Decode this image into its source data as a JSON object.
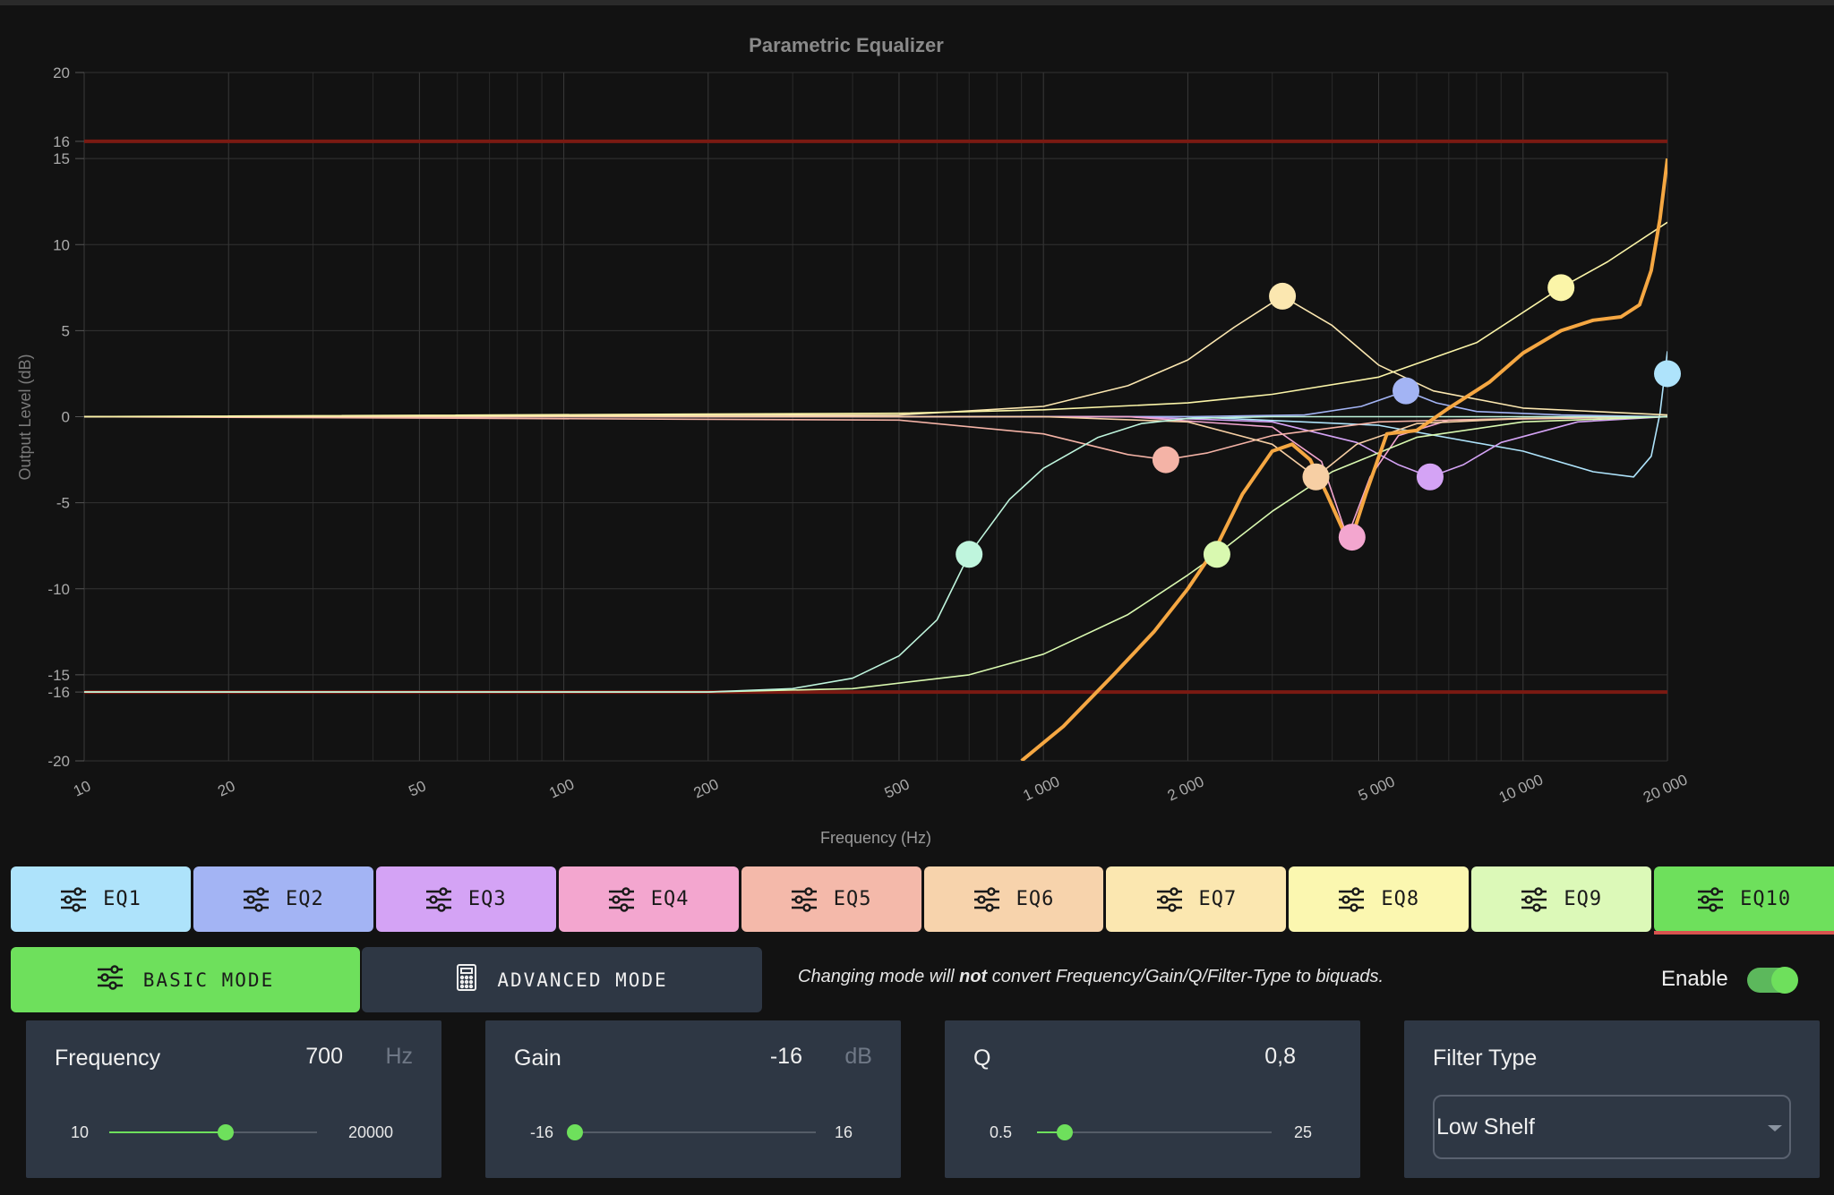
{
  "chart_data": {
    "type": "line",
    "title": "Parametric Equalizer",
    "xlabel": "Frequency (Hz)",
    "ylabel": "Output Level (dB)",
    "x_scale": "log",
    "xlim": [
      10,
      20000
    ],
    "ylim": [
      -20,
      20
    ],
    "grid": true,
    "y_ticks": [
      20,
      16,
      15,
      10,
      5,
      0,
      -5,
      -10,
      -15,
      -16,
      -20
    ],
    "y_tick_labels": [
      "20",
      "16",
      "15",
      "10",
      "5",
      "0",
      "-5",
      "-10",
      "-15",
      "-16",
      "-20"
    ],
    "x_ticks": [
      10,
      20,
      50,
      100,
      200,
      500,
      1000,
      2000,
      5000,
      10000,
      20000
    ],
    "x_tick_labels": [
      "10",
      "20",
      "50",
      "100",
      "200",
      "500",
      "1 000",
      "2 000",
      "5 000",
      "10 000",
      "20 000"
    ],
    "limit_lines": [
      16,
      -16
    ],
    "series": [
      {
        "color": "#aee3fb",
        "x": [
          10,
          2000,
          5000,
          10000,
          14000,
          17000,
          18500,
          19300,
          20000
        ],
        "y": [
          0,
          0,
          -0.5,
          -2,
          -3.2,
          -3.5,
          -2.3,
          0.2,
          3.8
        ]
      },
      {
        "color": "#a3b4f4",
        "x": [
          10,
          2000,
          3500,
          4600,
          5700,
          6600,
          8000,
          12000,
          20000
        ],
        "y": [
          0,
          0,
          0.1,
          0.6,
          1.5,
          0.8,
          0.3,
          0.1,
          0
        ]
      },
      {
        "color": "#d4a3f5",
        "x": [
          10,
          1500,
          3000,
          4500,
          5500,
          6400,
          7500,
          9000,
          13000,
          20000
        ],
        "y": [
          0,
          0,
          -0.3,
          -1.5,
          -2.8,
          -3.5,
          -2.8,
          -1.5,
          -0.3,
          0
        ]
      },
      {
        "color": "#f3a6cf",
        "x": [
          10,
          1500,
          3000,
          3800,
          4300,
          4800,
          5500,
          7000,
          20000
        ],
        "y": [
          0,
          0,
          -0.6,
          -2.6,
          -7,
          -3.5,
          -1.1,
          -0.2,
          0
        ]
      },
      {
        "color": "#f4b3a6",
        "x": [
          10,
          500,
          1000,
          1500,
          1800,
          2200,
          3000,
          5000,
          10000,
          20000
        ],
        "y": [
          0,
          -0.2,
          -1,
          -2.2,
          -2.5,
          -2.1,
          -1.1,
          -0.3,
          -0.1,
          0
        ]
      },
      {
        "color": "#f7cfa4",
        "x": [
          10,
          1000,
          2000,
          3000,
          3700,
          4500,
          6000,
          10000,
          20000
        ],
        "y": [
          0,
          0,
          -0.3,
          -1.6,
          -3.5,
          -1.6,
          -0.4,
          -0.1,
          0
        ]
      },
      {
        "color": "#fbe7b0",
        "x": [
          10,
          500,
          1000,
          1500,
          2000,
          2500,
          3150,
          4000,
          5000,
          6500,
          10000,
          20000
        ],
        "y": [
          0,
          0.1,
          0.6,
          1.8,
          3.3,
          5.2,
          7,
          5.3,
          3,
          1.5,
          0.5,
          0.1
        ]
      },
      {
        "color": "#fbf5a8",
        "x": [
          10,
          500,
          1000,
          2000,
          3000,
          5000,
          8000,
          12000,
          15000,
          20000
        ],
        "y": [
          0,
          0.2,
          0.4,
          0.8,
          1.3,
          2.3,
          4.3,
          7.5,
          9,
          11.3
        ]
      },
      {
        "color": "#d9f9b0",
        "x": [
          10,
          200,
          400,
          700,
          1000,
          1500,
          2000,
          2300,
          3000,
          4000,
          6000,
          10000,
          20000
        ],
        "y": [
          -16,
          -16,
          -15.8,
          -15,
          -13.8,
          -11.5,
          -9.2,
          -8,
          -5.5,
          -3.2,
          -1.2,
          -0.3,
          0
        ]
      },
      {
        "color": "#bff5dd",
        "x": [
          10,
          200,
          300,
          400,
          500,
          600,
          700,
          850,
          1000,
          1300,
          1600,
          2000,
          3000,
          5000,
          20000
        ],
        "y": [
          -16,
          -16,
          -15.8,
          -15.2,
          -13.9,
          -11.8,
          -8,
          -4.8,
          -3,
          -1.2,
          -0.4,
          -0.1,
          0,
          0,
          0
        ]
      }
    ],
    "combined": {
      "color": "#f5a742",
      "x": [
        900,
        1100,
        1400,
        1700,
        2000,
        2300,
        2600,
        3000,
        3300,
        3600,
        3900,
        4200,
        4400,
        4700,
        5200,
        6000,
        7000,
        8500,
        10000,
        12000,
        14000,
        16000,
        17500,
        18500,
        19300,
        20000
      ],
      "y": [
        -20,
        -18,
        -15,
        -12.5,
        -10,
        -7.5,
        -4.5,
        -2,
        -1.6,
        -2.5,
        -4.5,
        -6.5,
        -7,
        -4.5,
        -1,
        -0.8,
        0.5,
        2,
        3.7,
        5,
        5.6,
        5.8,
        6.5,
        8.5,
        11.5,
        15
      ]
    },
    "markers": [
      {
        "x": 20000,
        "y": 2.5,
        "color": "#aee3fb"
      },
      {
        "x": 5700,
        "y": 1.5,
        "color": "#a3b4f4"
      },
      {
        "x": 6400,
        "y": -3.5,
        "color": "#d4a3f5"
      },
      {
        "x": 4400,
        "y": -7,
        "color": "#f3a6cf"
      },
      {
        "x": 1800,
        "y": -2.5,
        "color": "#f4b3a6"
      },
      {
        "x": 3700,
        "y": -3.5,
        "color": "#f7cfa4"
      },
      {
        "x": 3150,
        "y": 7,
        "color": "#fbe7b0"
      },
      {
        "x": 12000,
        "y": 7.5,
        "color": "#fbf5a8"
      },
      {
        "x": 2300,
        "y": -8,
        "color": "#d9f9b0"
      },
      {
        "x": 700,
        "y": -8,
        "color": "#bff5dd"
      }
    ]
  },
  "tabs": [
    {
      "label": "EQ1",
      "color": "#aee3fb"
    },
    {
      "label": "EQ2",
      "color": "#a3b4f4"
    },
    {
      "label": "EQ3",
      "color": "#d4a3f5"
    },
    {
      "label": "EQ4",
      "color": "#f3a6cf"
    },
    {
      "label": "EQ5",
      "color": "#f4b9aa"
    },
    {
      "label": "EQ6",
      "color": "#f7d3ac"
    },
    {
      "label": "EQ7",
      "color": "#fbe7b0"
    },
    {
      "label": "EQ8",
      "color": "#fbf7b0"
    },
    {
      "label": "EQ9",
      "color": "#dcf9b8"
    },
    {
      "label": "EQ10",
      "color": "#6ee05c",
      "active": true
    }
  ],
  "mode": {
    "basic_label": "BASIC MODE",
    "advanced_label": "ADVANCED MODE",
    "note_prefix": "Changing mode will ",
    "note_bold": "not",
    "note_suffix": " convert Frequency/Gain/Q/Filter-Type to biquads."
  },
  "enable": {
    "label": "Enable",
    "on": true
  },
  "controls": {
    "frequency": {
      "label": "Frequency",
      "value": "700",
      "unit": "Hz",
      "min": "10",
      "max": "20000",
      "fraction": 0.56
    },
    "gain": {
      "label": "Gain",
      "value": "-16",
      "unit": "dB",
      "min": "-16",
      "max": "16",
      "fraction": 0.0
    },
    "q": {
      "label": "Q",
      "value": "0,8",
      "min": "0.5",
      "max": "25",
      "fraction": 0.12
    },
    "filter": {
      "label": "Filter Type",
      "value": "Low Shelf"
    }
  }
}
